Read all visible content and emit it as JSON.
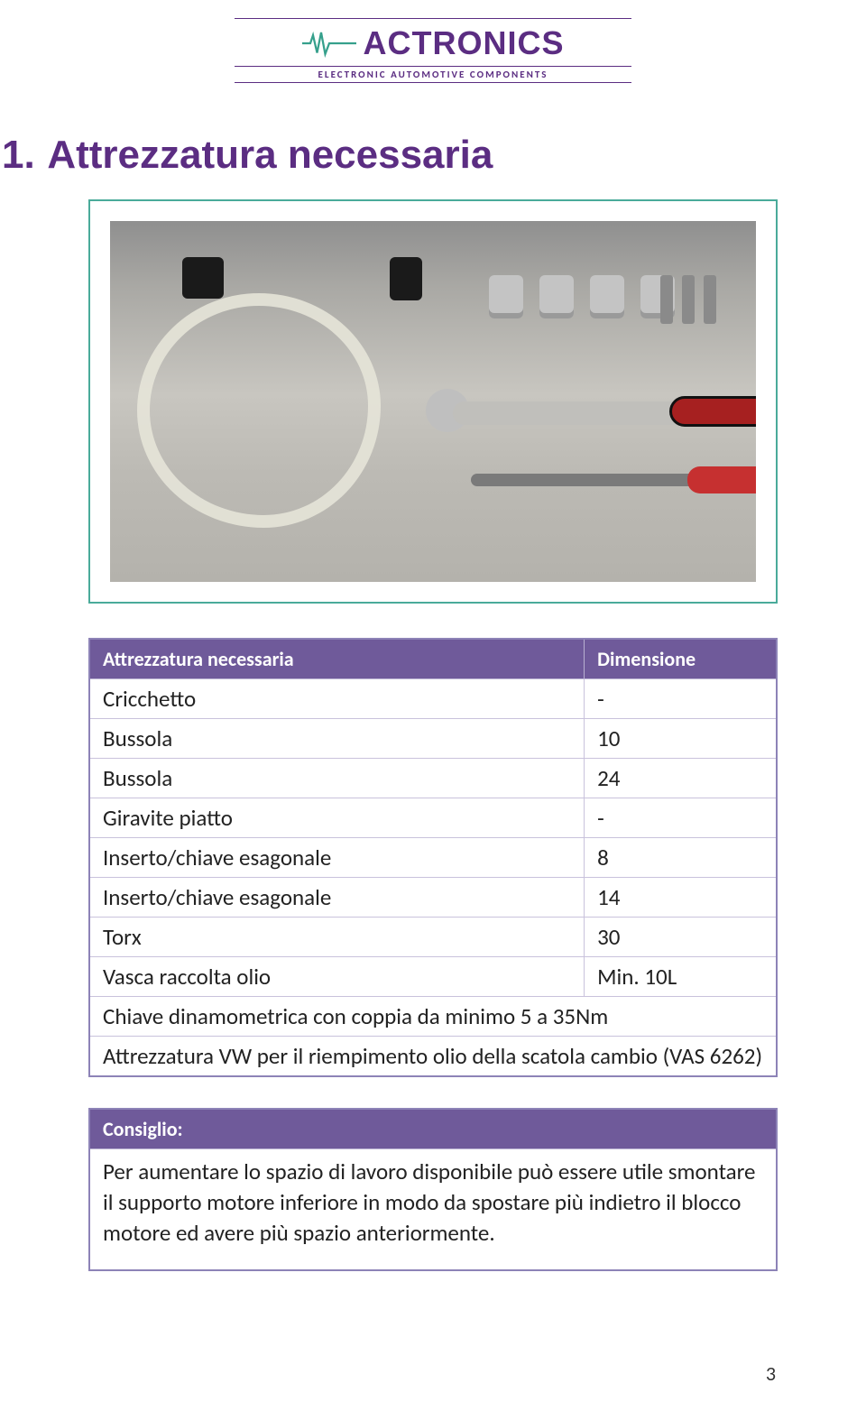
{
  "logo": {
    "name": "ACTRONICS",
    "subtitle": "ELECTRONIC AUTOMOTIVE COMPONENTS",
    "brand_color": "#5b2d82",
    "accent_color": "#4aab9a"
  },
  "section": {
    "number": "1.",
    "title": "Attrezzatura necessaria"
  },
  "tool_table": {
    "header_bg": "#6f5a9a",
    "header_fg": "#ffffff",
    "border_color": "#8d83b7",
    "columns": [
      "Attrezzatura necessaria",
      "Dimensione"
    ],
    "rows": [
      {
        "name": "Cricchetto",
        "dim": "-"
      },
      {
        "name": "Bussola",
        "dim": "10"
      },
      {
        "name": "Bussola",
        "dim": "24"
      },
      {
        "name": "Giravite piatto",
        "dim": "-"
      },
      {
        "name": "Inserto/chiave esagonale",
        "dim": "8"
      },
      {
        "name": "Inserto/chiave esagonale",
        "dim": "14"
      },
      {
        "name": "Torx",
        "dim": "30"
      },
      {
        "name": "Vasca raccolta olio",
        "dim": "Min. 10L"
      },
      {
        "name": "Chiave dinamometrica con coppia da minimo 5 a 35Nm",
        "dim": "",
        "span": true
      },
      {
        "name": "Attrezzatura VW per il riempimento olio della scatola cambio (VAS 6262)",
        "dim": "",
        "span": true
      }
    ]
  },
  "tip": {
    "label": "Consiglio:",
    "text": "Per aumentare lo spazio di lavoro disponibile può essere utile smontare il supporto motore inferiore in modo da spostare più indietro il blocco motore ed avere più spazio anteriormente."
  },
  "page_number": "3"
}
